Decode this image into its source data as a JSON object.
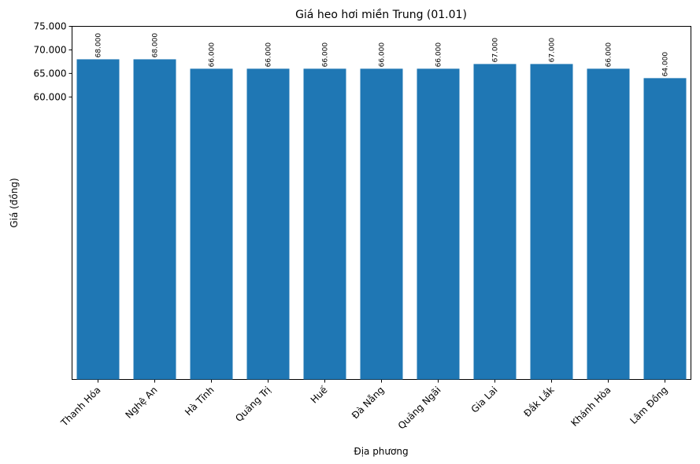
{
  "chart_data": {
    "type": "bar",
    "title": "Giá heo hơi miền Trung (01.01)",
    "xlabel": "Địa phương",
    "ylabel": "Giá (đồng)",
    "categories": [
      "Thanh Hóa",
      "Nghệ An",
      "Hà Tĩnh",
      "Quảng Trị",
      "Huế",
      "Đà Nẵng",
      "Quảng Ngãi",
      "Gia Lai",
      "Đắk Lắk",
      "Khánh Hòa",
      "Lâm Đồng"
    ],
    "values": [
      68000,
      68000,
      66000,
      66000,
      66000,
      66000,
      66000,
      67000,
      67000,
      66000,
      64000
    ],
    "value_labels": [
      "68.000",
      "68.000",
      "66.000",
      "66.000",
      "66.000",
      "66.000",
      "66.000",
      "67.000",
      "67.000",
      "66.000",
      "64.000"
    ],
    "yticks": [
      60000,
      65000,
      70000,
      75000
    ],
    "ytick_labels": [
      "60.000",
      "65.000",
      "70.000",
      "75.000"
    ],
    "ylim": [
      0,
      75000
    ],
    "bar_color": "#1f77b4",
    "grid": false,
    "legend": "none"
  }
}
